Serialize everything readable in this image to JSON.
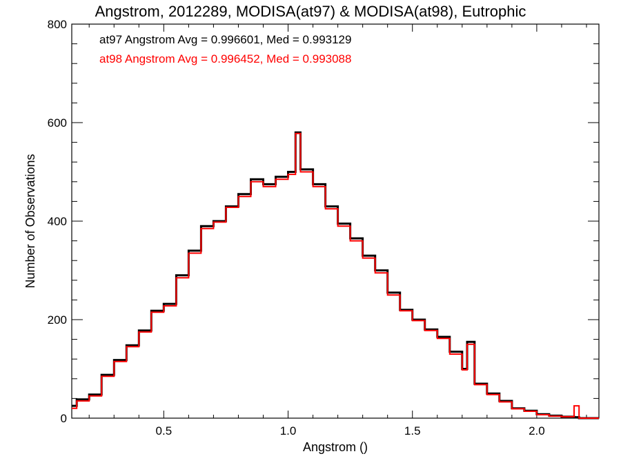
{
  "chart_data": {
    "type": "line",
    "step": true,
    "title": "Angstrom, 2012289, MODISA(at97) & MODISA(at98), Eutrophic",
    "xlabel": "Angstrom ()",
    "ylabel": "Number of Observations",
    "xlim": [
      0.13,
      2.25
    ],
    "ylim": [
      0,
      800
    ],
    "xticks": [
      0.5,
      1.0,
      1.5,
      2.0
    ],
    "xtick_labels": [
      "0.5",
      "1.0",
      "1.5",
      "2.0"
    ],
    "yticks": [
      0,
      200,
      400,
      600,
      800
    ],
    "ytick_labels": [
      "0",
      "200",
      "400",
      "600",
      "800"
    ],
    "annotations": [
      {
        "text": "at97 Angstrom Avg = 0.996601, Med = 0.993129",
        "color": "#000000"
      },
      {
        "text": "at98 Angstrom Avg = 0.996452, Med = 0.993088",
        "color": "#ff0000"
      }
    ],
    "series": [
      {
        "color": "#000000",
        "x": [
          0.13,
          0.15,
          0.2,
          0.25,
          0.3,
          0.35,
          0.4,
          0.45,
          0.5,
          0.55,
          0.6,
          0.65,
          0.7,
          0.75,
          0.8,
          0.85,
          0.9,
          0.95,
          1.0,
          1.03,
          1.05,
          1.1,
          1.15,
          1.2,
          1.25,
          1.3,
          1.35,
          1.4,
          1.45,
          1.5,
          1.55,
          1.6,
          1.65,
          1.7,
          1.72,
          1.75,
          1.8,
          1.85,
          1.9,
          1.95,
          2.0,
          2.05,
          2.1,
          2.15,
          2.17,
          2.25
        ],
        "y": [
          25,
          38,
          48,
          88,
          118,
          148,
          178,
          218,
          232,
          290,
          340,
          390,
          400,
          430,
          455,
          485,
          475,
          490,
          500,
          580,
          505,
          475,
          430,
          395,
          365,
          330,
          300,
          255,
          220,
          200,
          180,
          165,
          135,
          100,
          155,
          70,
          50,
          35,
          20,
          15,
          8,
          5,
          3,
          2,
          0,
          0
        ]
      },
      {
        "color": "#ff0000",
        "x": [
          0.13,
          0.15,
          0.2,
          0.25,
          0.3,
          0.35,
          0.4,
          0.45,
          0.5,
          0.55,
          0.6,
          0.65,
          0.7,
          0.75,
          0.8,
          0.85,
          0.9,
          0.95,
          1.0,
          1.03,
          1.05,
          1.1,
          1.15,
          1.2,
          1.25,
          1.3,
          1.35,
          1.4,
          1.45,
          1.5,
          1.55,
          1.6,
          1.65,
          1.7,
          1.72,
          1.75,
          1.8,
          1.85,
          1.9,
          1.95,
          2.0,
          2.05,
          2.1,
          2.15,
          2.17,
          2.25
        ],
        "y": [
          20,
          35,
          45,
          85,
          115,
          145,
          175,
          215,
          228,
          285,
          335,
          385,
          398,
          428,
          450,
          480,
          470,
          485,
          495,
          578,
          500,
          470,
          425,
          390,
          360,
          325,
          295,
          250,
          218,
          198,
          178,
          162,
          130,
          98,
          150,
          68,
          48,
          33,
          19,
          14,
          7,
          4,
          3,
          25,
          0,
          0
        ]
      }
    ]
  }
}
